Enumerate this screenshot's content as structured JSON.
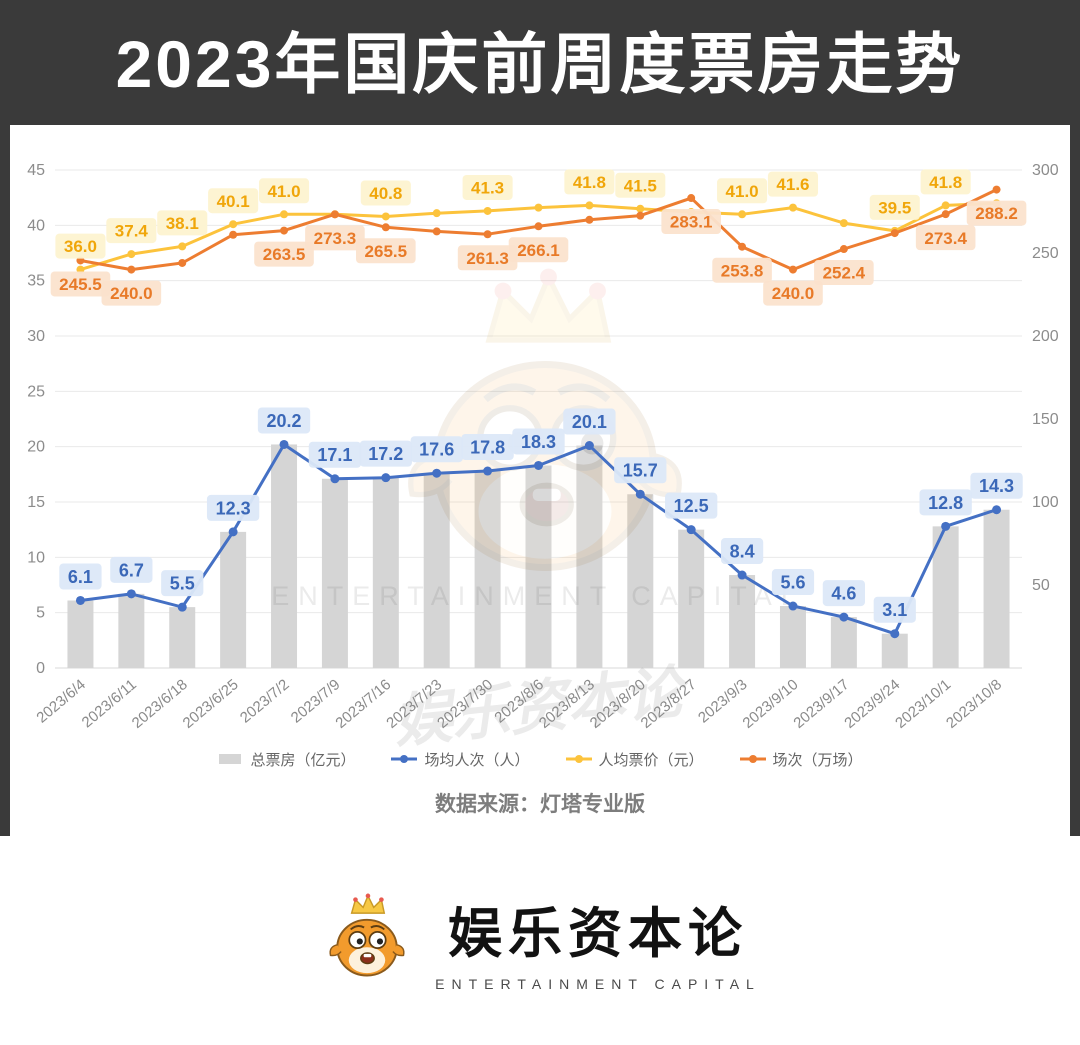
{
  "page": {
    "title": "2023年国庆前周度票房走势",
    "source": "数据来源：灯塔专业版",
    "watermark_en": "ENTERTAINMENT CAPITAL",
    "watermark_cn": "娱乐资本论",
    "brand": {
      "name_cn": "娱乐资本论",
      "name_en": "ENTERTAINMENT CAPITAL"
    }
  },
  "chart_data": {
    "type": "combo-bar-line",
    "title": "2023年国庆前周度票房走势",
    "grid": true,
    "legend_position": "bottom",
    "categories": [
      "2023/6/4",
      "2023/6/11",
      "2023/6/18",
      "2023/6/25",
      "2023/7/2",
      "2023/7/9",
      "2023/7/16",
      "2023/7/23",
      "2023/7/30",
      "2023/8/6",
      "2023/8/13",
      "2023/8/20",
      "2023/8/27",
      "2023/9/3",
      "2023/9/10",
      "2023/9/17",
      "2023/9/24",
      "2023/10/1",
      "2023/10/8"
    ],
    "left_axis": {
      "min": 0,
      "max": 45,
      "ticks": [
        0,
        5,
        10,
        15,
        20,
        25,
        30,
        35,
        40,
        45
      ]
    },
    "right_axis": {
      "min": 0,
      "max": 300,
      "ticks": [
        50,
        100,
        150,
        200,
        250,
        300
      ]
    },
    "series": [
      {
        "key": "total_boxoffice",
        "name": "总票房（亿元）",
        "type": "bar",
        "axis": "left",
        "color": "#d5d5d5",
        "values": [
          6.1,
          6.7,
          5.5,
          12.3,
          20.2,
          17.1,
          17.2,
          17.6,
          17.8,
          18.3,
          20.1,
          15.7,
          12.5,
          8.4,
          5.6,
          4.6,
          3.1,
          12.8,
          14.3
        ]
      },
      {
        "key": "avg_attendance",
        "name": "场均人次（人）",
        "type": "line",
        "axis": "left",
        "color": "#4470c4",
        "label_style": {
          "bg": "#dce8f8",
          "fg": "#3b68b8",
          "size": 18
        },
        "label_placement": "above",
        "values": [
          6.1,
          6.7,
          5.5,
          12.3,
          20.2,
          17.1,
          17.2,
          17.6,
          17.8,
          18.3,
          20.1,
          15.7,
          12.5,
          8.4,
          5.6,
          4.6,
          3.1,
          12.8,
          14.3
        ],
        "labels": [
          "6.1",
          "6.7",
          "5.5",
          "12.3",
          "20.2",
          "17.1",
          "17.2",
          "17.6",
          "17.8",
          "18.3",
          "20.1",
          "15.7",
          "12.5",
          "8.4",
          "5.6",
          "4.6",
          "3.1",
          "12.8",
          "14.3"
        ]
      },
      {
        "key": "avg_ticket_price",
        "name": "人均票价（元）",
        "type": "line",
        "axis": "left",
        "color": "#fcc33c",
        "label_style": {
          "bg": "#fdf3d0",
          "fg": "#f0a60a",
          "size": 17
        },
        "label_placement": "above",
        "values": [
          36.0,
          37.4,
          38.1,
          40.1,
          41.0,
          41.0,
          40.8,
          41.1,
          41.3,
          41.6,
          41.8,
          41.5,
          41.2,
          41.0,
          41.6,
          40.2,
          39.5,
          41.8,
          42.0
        ],
        "labels": [
          "36.0",
          "37.4",
          "38.1",
          "40.1",
          "41.0",
          null,
          "40.8",
          null,
          "41.3",
          null,
          "41.8",
          "41.5",
          null,
          "41.0",
          "41.6",
          null,
          "39.5",
          "41.8",
          null
        ]
      },
      {
        "key": "screenings",
        "name": "场次（万场）",
        "type": "line",
        "axis": "right",
        "color": "#ed7d31",
        "label_style": {
          "bg": "#fbe3cd",
          "fg": "#e87a28",
          "size": 17
        },
        "label_placement": "below",
        "values": [
          245.5,
          240.0,
          244.0,
          261.0,
          263.5,
          273.3,
          265.5,
          263.0,
          261.3,
          266.1,
          270.0,
          272.5,
          283.1,
          253.8,
          240.0,
          252.4,
          262.0,
          273.4,
          288.2
        ],
        "labels": [
          "245.5",
          "240.0",
          null,
          null,
          "263.5",
          "273.3",
          "265.5",
          null,
          "261.3",
          "266.1",
          null,
          null,
          "283.1",
          "253.8",
          "240.0",
          "252.4",
          null,
          "273.4",
          "288.2"
        ]
      }
    ]
  }
}
